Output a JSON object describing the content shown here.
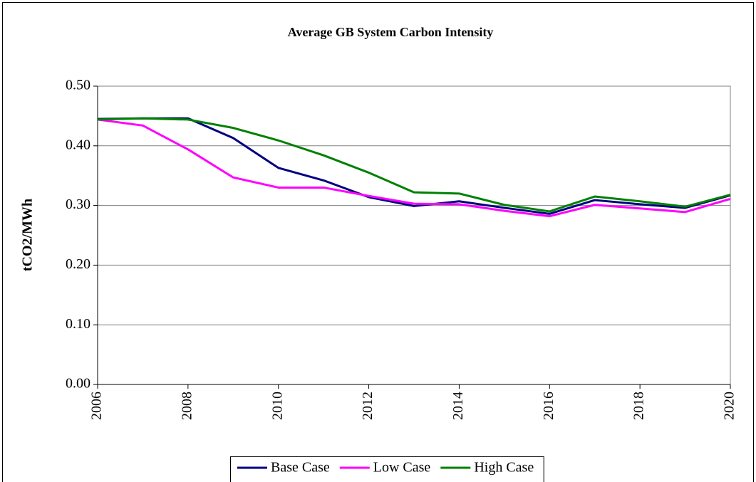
{
  "chart_data": {
    "type": "line",
    "title": "Average GB System Carbon Intensity",
    "y_label": "tCO2/MWh",
    "x": [
      2006,
      2007,
      2008,
      2009,
      2010,
      2011,
      2012,
      2013,
      2014,
      2015,
      2016,
      2017,
      2018,
      2019,
      2020
    ],
    "series": [
      {
        "name": "Base Case",
        "color": "#000080",
        "values": [
          0.445,
          0.446,
          0.446,
          0.413,
          0.363,
          0.342,
          0.314,
          0.299,
          0.307,
          0.296,
          0.286,
          0.309,
          0.302,
          0.296,
          0.317
        ]
      },
      {
        "name": "Low Case",
        "color": "#ff00ff",
        "values": [
          0.444,
          0.434,
          0.394,
          0.347,
          0.33,
          0.33,
          0.316,
          0.303,
          0.302,
          0.291,
          0.282,
          0.301,
          0.295,
          0.289,
          0.311
        ]
      },
      {
        "name": "High Case",
        "color": "#008000",
        "values": [
          0.444,
          0.446,
          0.444,
          0.43,
          0.409,
          0.384,
          0.355,
          0.322,
          0.32,
          0.301,
          0.29,
          0.315,
          0.307,
          0.298,
          0.318
        ]
      }
    ],
    "xlim": [
      2006,
      2020
    ],
    "xticks": [
      2006,
      2008,
      2010,
      2012,
      2014,
      2016,
      2018,
      2020
    ],
    "ylim": [
      0,
      0.5
    ],
    "yticks": [
      {
        "value": 0,
        "label": "0.00"
      },
      {
        "value": 0.1,
        "label": "0.10"
      },
      {
        "value": 0.2,
        "label": "0.20"
      },
      {
        "value": 0.3,
        "label": "0.30"
      },
      {
        "value": 0.4,
        "label": "0.40"
      },
      {
        "value": 0.5,
        "label": "0.50"
      }
    ],
    "grid": true,
    "legend": "bottom"
  }
}
